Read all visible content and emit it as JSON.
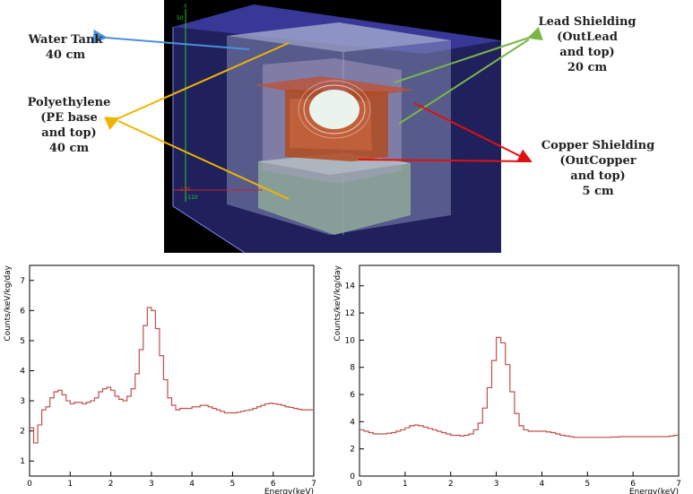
{
  "callouts": {
    "water_tank": [
      "Water Tank",
      "40 cm"
    ],
    "polyethylene": [
      "Polyethylene",
      "(PE base",
      "and top)",
      "40 cm"
    ],
    "lead": [
      "Lead Shielding",
      "(OutLead",
      "and top)",
      "20 cm"
    ],
    "copper": [
      "Copper Shielding",
      "(OutCopper",
      "and top)",
      "5 cm"
    ]
  },
  "scene_labels": {
    "y_axis_top": "Y",
    "y_axis_value": "50",
    "x_axis_neg1": "-130",
    "x_axis_neg2": "-110"
  },
  "colors": {
    "water_arrow": "#4a90d9",
    "pe_arrow": "#f0b400",
    "lead_arrow": "#7ab648",
    "copper_arrow": "#e01010",
    "spectrum_line": "#c0504d",
    "scene_bg": "#000000"
  },
  "chart_data": [
    {
      "type": "line",
      "title": "",
      "xlabel": "Energy(keV)",
      "ylabel": "Counts/keV/kg/day",
      "xlim": [
        0,
        7
      ],
      "ylim": [
        0.5,
        7.5
      ],
      "x_ticks": [
        0,
        1,
        2,
        3,
        4,
        5,
        6,
        7
      ],
      "y_ticks": [
        1,
        2,
        3,
        4,
        5,
        6,
        7
      ],
      "bin_width": 0.1,
      "values": [
        2.1,
        1.6,
        2.2,
        2.7,
        2.8,
        3.1,
        3.3,
        3.35,
        3.2,
        3.0,
        2.9,
        2.95,
        2.95,
        2.9,
        2.95,
        3.0,
        3.1,
        3.3,
        3.4,
        3.45,
        3.35,
        3.15,
        3.05,
        3.0,
        3.15,
        3.4,
        3.9,
        4.7,
        5.5,
        6.1,
        6.0,
        5.4,
        4.5,
        3.7,
        3.1,
        2.85,
        2.7,
        2.75,
        2.75,
        2.75,
        2.8,
        2.8,
        2.85,
        2.85,
        2.8,
        2.75,
        2.7,
        2.65,
        2.6,
        2.6,
        2.6,
        2.62,
        2.65,
        2.68,
        2.7,
        2.75,
        2.8,
        2.85,
        2.9,
        2.92,
        2.9,
        2.88,
        2.85,
        2.8,
        2.78,
        2.75,
        2.72,
        2.7,
        2.7,
        2.7
      ]
    },
    {
      "type": "line",
      "title": "",
      "xlabel": "Energy(keV)",
      "ylabel": "Counts/keV/kg/day",
      "xlim": [
        0,
        7
      ],
      "ylim": [
        0,
        15.5
      ],
      "x_ticks": [
        0,
        1,
        2,
        3,
        4,
        5,
        6,
        7
      ],
      "y_ticks": [
        0,
        2,
        4,
        6,
        8,
        10,
        12,
        14
      ],
      "bin_width": 0.1,
      "values": [
        3.4,
        3.3,
        3.2,
        3.1,
        3.1,
        3.1,
        3.15,
        3.2,
        3.3,
        3.4,
        3.55,
        3.7,
        3.75,
        3.7,
        3.6,
        3.5,
        3.4,
        3.3,
        3.2,
        3.1,
        3.0,
        3.0,
        2.95,
        3.0,
        3.1,
        3.4,
        3.9,
        5.0,
        6.5,
        8.5,
        10.2,
        9.8,
        8.2,
        6.2,
        4.6,
        3.7,
        3.4,
        3.3,
        3.3,
        3.3,
        3.3,
        3.25,
        3.2,
        3.1,
        3.0,
        2.95,
        2.9,
        2.85,
        2.85,
        2.85,
        2.85,
        2.85,
        2.85,
        2.85,
        2.85,
        2.87,
        2.87,
        2.9,
        2.9,
        2.9,
        2.9,
        2.9,
        2.9,
        2.9,
        2.9,
        2.9,
        2.9,
        2.9,
        2.95,
        3.0
      ]
    }
  ]
}
